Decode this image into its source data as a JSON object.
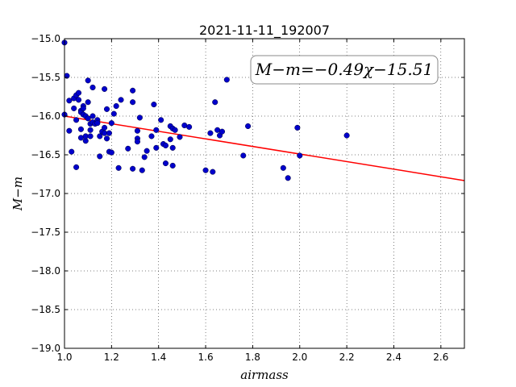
{
  "chart_data": {
    "type": "scatter",
    "title": "2021-11-11_192007",
    "xlabel": "airmass",
    "ylabel": "M−m",
    "xlim": [
      1.0,
      2.7
    ],
    "ylim": [
      -19.0,
      -15.0
    ],
    "y_inverted": false,
    "grid": true,
    "xticks": [
      1.0,
      1.2,
      1.4,
      1.6,
      1.8,
      2.0,
      2.2,
      2.4,
      2.6
    ],
    "xtick_labels": [
      "1.0",
      "1.2",
      "1.4",
      "1.6",
      "1.8",
      "2.0",
      "2.2",
      "2.4",
      "2.6"
    ],
    "yticks": [
      -15.0,
      -15.5,
      -16.0,
      -16.5,
      -17.0,
      -17.5,
      -18.0,
      -18.5,
      -19.0
    ],
    "ytick_labels": [
      "−15.0",
      "−15.5",
      "−16.0",
      "−16.5",
      "−17.0",
      "−17.5",
      "−18.0",
      "−18.5",
      "−19.0"
    ],
    "annotation": "M−m=−0.49χ−15.51",
    "fit": {
      "slope": -0.49,
      "intercept": -15.51,
      "color": "#ff0000"
    },
    "point_color": "#0000cc",
    "points": [
      [
        1.0,
        -15.05
      ],
      [
        1.01,
        -15.48
      ],
      [
        1.0,
        -15.98
      ],
      [
        1.02,
        -15.8
      ],
      [
        1.03,
        -16.46
      ],
      [
        1.02,
        -16.19
      ],
      [
        1.04,
        -15.77
      ],
      [
        1.04,
        -15.9
      ],
      [
        1.05,
        -15.73
      ],
      [
        1.05,
        -16.05
      ],
      [
        1.05,
        -16.66
      ],
      [
        1.06,
        -15.7
      ],
      [
        1.06,
        -15.79
      ],
      [
        1.07,
        -15.93
      ],
      [
        1.07,
        -15.95
      ],
      [
        1.07,
        -16.17
      ],
      [
        1.07,
        -16.28
      ],
      [
        1.08,
        -15.87
      ],
      [
        1.08,
        -15.9
      ],
      [
        1.08,
        -15.98
      ],
      [
        1.09,
        -16.0
      ],
      [
        1.09,
        -16.32
      ],
      [
        1.09,
        -16.26
      ],
      [
        1.1,
        -15.54
      ],
      [
        1.1,
        -15.82
      ],
      [
        1.1,
        -16.03
      ],
      [
        1.11,
        -16.1
      ],
      [
        1.11,
        -16.18
      ],
      [
        1.11,
        -16.26
      ],
      [
        1.12,
        -15.63
      ],
      [
        1.12,
        -16.0
      ],
      [
        1.12,
        -16.08
      ],
      [
        1.13,
        -16.1
      ],
      [
        1.14,
        -16.05
      ],
      [
        1.14,
        -16.09
      ],
      [
        1.15,
        -16.26
      ],
      [
        1.15,
        -16.52
      ],
      [
        1.16,
        -16.2
      ],
      [
        1.17,
        -16.15
      ],
      [
        1.17,
        -16.22
      ],
      [
        1.17,
        -15.65
      ],
      [
        1.18,
        -15.91
      ],
      [
        1.18,
        -16.29
      ],
      [
        1.19,
        -16.22
      ],
      [
        1.19,
        -16.46
      ],
      [
        1.2,
        -16.09
      ],
      [
        1.2,
        -16.47
      ],
      [
        1.21,
        -15.97
      ],
      [
        1.22,
        -15.87
      ],
      [
        1.23,
        -16.67
      ],
      [
        1.24,
        -15.79
      ],
      [
        1.27,
        -16.42
      ],
      [
        1.29,
        -16.68
      ],
      [
        1.29,
        -15.67
      ],
      [
        1.29,
        -15.82
      ],
      [
        1.31,
        -16.19
      ],
      [
        1.31,
        -16.29
      ],
      [
        1.31,
        -16.33
      ],
      [
        1.32,
        -16.02
      ],
      [
        1.33,
        -16.7
      ],
      [
        1.34,
        -16.53
      ],
      [
        1.35,
        -16.45
      ],
      [
        1.37,
        -16.26
      ],
      [
        1.38,
        -15.85
      ],
      [
        1.39,
        -16.41
      ],
      [
        1.39,
        -16.18
      ],
      [
        1.41,
        -16.05
      ],
      [
        1.42,
        -16.36
      ],
      [
        1.43,
        -16.38
      ],
      [
        1.43,
        -16.61
      ],
      [
        1.45,
        -16.13
      ],
      [
        1.45,
        -16.3
      ],
      [
        1.46,
        -16.16
      ],
      [
        1.46,
        -16.41
      ],
      [
        1.46,
        -16.64
      ],
      [
        1.47,
        -16.18
      ],
      [
        1.49,
        -16.27
      ],
      [
        1.51,
        -16.12
      ],
      [
        1.53,
        -16.14
      ],
      [
        1.6,
        -16.7
      ],
      [
        1.62,
        -16.22
      ],
      [
        1.63,
        -16.72
      ],
      [
        1.64,
        -15.82
      ],
      [
        1.65,
        -16.18
      ],
      [
        1.66,
        -16.25
      ],
      [
        1.67,
        -16.2
      ],
      [
        1.69,
        -15.53
      ],
      [
        1.76,
        -16.51
      ],
      [
        1.78,
        -16.13
      ],
      [
        1.93,
        -16.67
      ],
      [
        1.95,
        -16.8
      ],
      [
        1.99,
        -16.15
      ],
      [
        2.0,
        -16.51
      ],
      [
        2.2,
        -16.25
      ]
    ]
  }
}
